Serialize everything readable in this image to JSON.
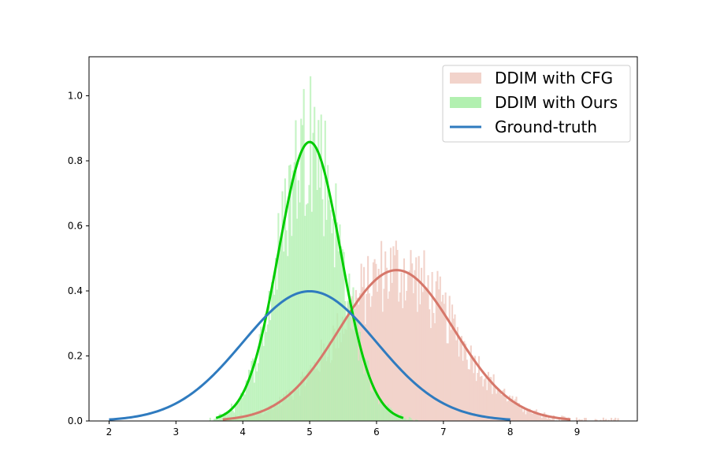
{
  "chart_data": {
    "type": "histogram",
    "xlim": [
      1.7,
      9.9
    ],
    "ylim": [
      0,
      1.12
    ],
    "x_ticks": [
      2,
      3,
      4,
      5,
      6,
      7,
      8,
      9
    ],
    "y_ticks": [
      0.0,
      0.2,
      0.4,
      0.6,
      0.8,
      1.0
    ],
    "x_tick_labels": [
      "2",
      "3",
      "4",
      "5",
      "6",
      "7",
      "8",
      "9"
    ],
    "y_tick_labels": [
      "0.0",
      "0.2",
      "0.4",
      "0.6",
      "0.8",
      "1.0"
    ],
    "grid": false,
    "legend_position": "top-right",
    "series": [
      {
        "name": "DDIM with CFG",
        "kind": "histogram",
        "color": "#f2d3cb",
        "curve_color": "#d6776a",
        "fit": {
          "mean": 6.3,
          "std": 0.86,
          "x_range": [
            3.7,
            8.9
          ]
        },
        "data_range": [
          3.7,
          9.6
        ]
      },
      {
        "name": "DDIM with Ours",
        "kind": "histogram",
        "color": "#b2f0b0",
        "curve_color": "#00cc00",
        "fit": {
          "mean": 5.0,
          "std": 0.465,
          "x_range": [
            3.6,
            6.4
          ]
        },
        "data_range": [
          3.5,
          6.6
        ],
        "peak_bar": 1.06
      },
      {
        "name": "Ground-truth",
        "kind": "line",
        "color": "#2f7bbf",
        "fit": {
          "mean": 5.0,
          "std": 1.0,
          "x_range": [
            2.0,
            8.0
          ]
        }
      }
    ]
  }
}
